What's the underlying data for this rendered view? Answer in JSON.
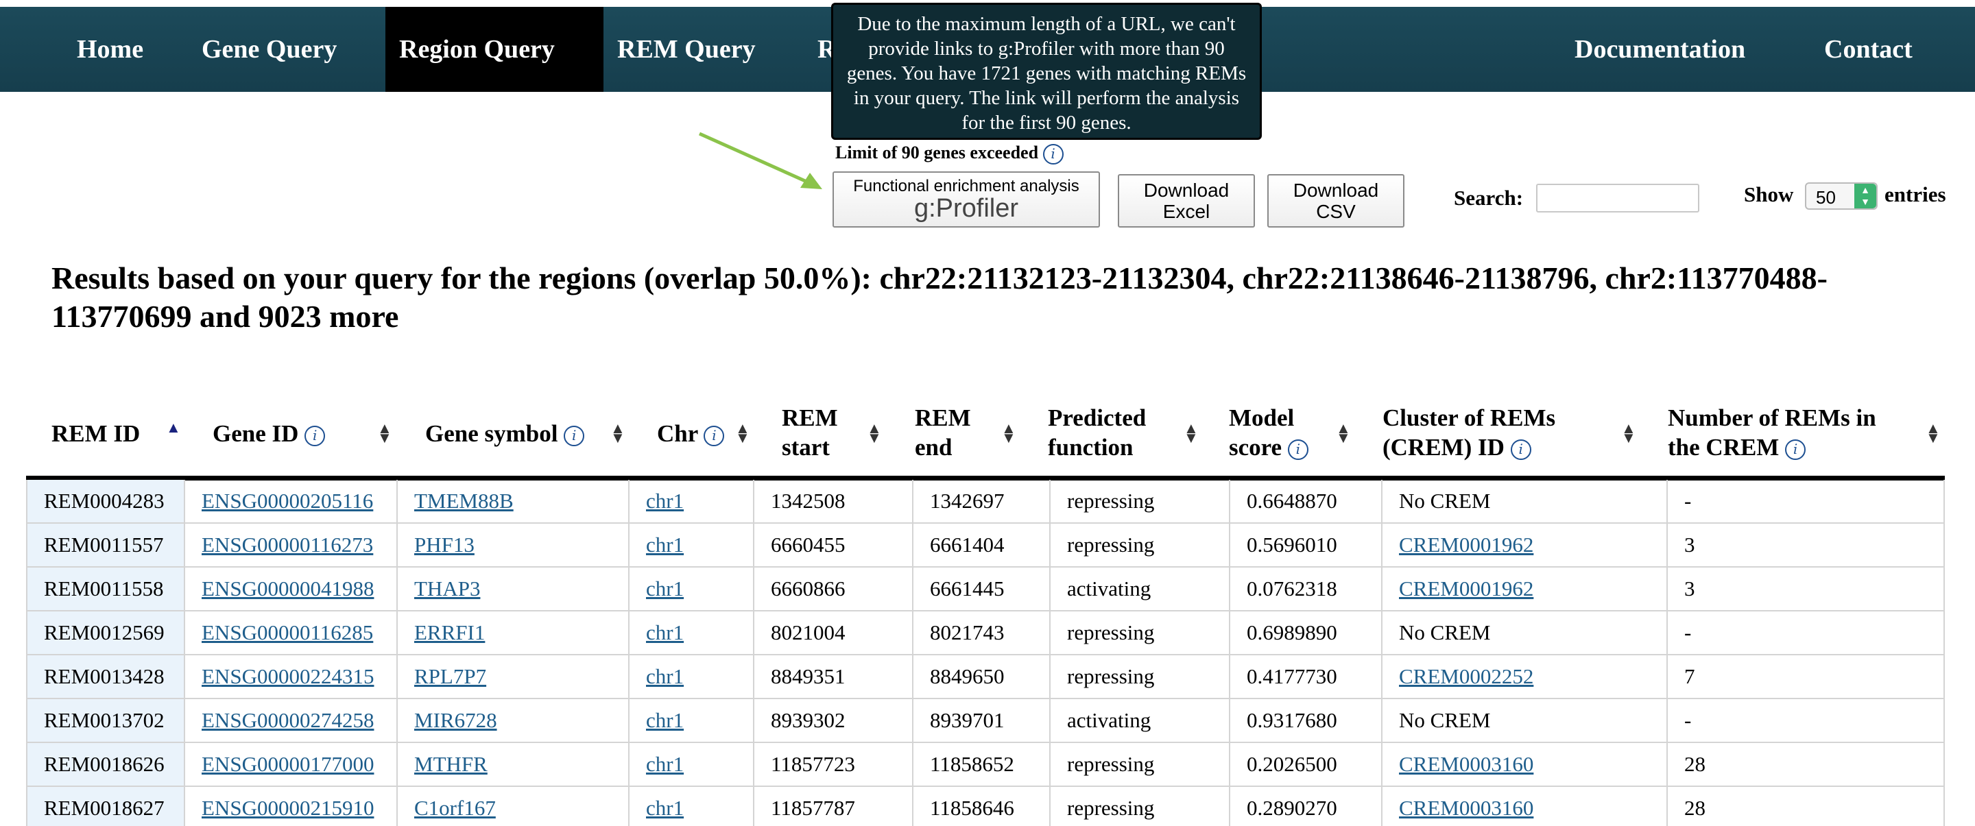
{
  "nav": {
    "items": [
      {
        "label": "Home"
      },
      {
        "label": "Gene Query"
      },
      {
        "label": "Region Query"
      },
      {
        "label": "REM Query"
      },
      {
        "label": "R"
      },
      {
        "label": "Documentation"
      },
      {
        "label": "Contact"
      }
    ]
  },
  "tooltip": {
    "text": "Due to the maximum length of a URL, we can't provide links to g:Profiler with more than 90 genes. You have 1721 genes with matching REMs in your query. The link will perform the analysis for the first 90 genes."
  },
  "limit_notice": "Limit of 90 genes exceeded",
  "buttons": {
    "gprofiler_line1": "Functional enrichment analysis",
    "gprofiler_line2": "g:Profiler",
    "excel_line1": "Download",
    "excel_line2": "Excel",
    "csv_line1": "Download",
    "csv_line2": "CSV"
  },
  "search": {
    "label": "Search:",
    "value": ""
  },
  "show": {
    "label": "Show",
    "value": "50",
    "suffix": "entries"
  },
  "results_title": "Results based on your query for the regions (overlap 50.0%): chr22:21132123-21132304, chr22:21138646-21138796, chr2:113770488-113770699 and 9023 more",
  "table": {
    "headers": {
      "rem_id": "REM ID",
      "gene_id": "Gene ID",
      "gene_symbol": "Gene symbol",
      "chr": "Chr",
      "rem_start_1": "REM",
      "rem_start_2": "start",
      "rem_end_1": "REM",
      "rem_end_2": "end",
      "predicted_1": "Predicted",
      "predicted_2": "function",
      "model_1": "Model",
      "model_2": "score",
      "crem_1": "Cluster of REMs",
      "crem_2": "(CREM) ID",
      "nrem_1": "Number of REMs in",
      "nrem_2": "the CREM"
    },
    "rows": [
      {
        "rem_id": "REM0004283",
        "gene_id": "ENSG00000205116",
        "gene_symbol": "TMEM88B",
        "chr": "chr1",
        "start": "1342508",
        "end": "1342697",
        "function": "repressing",
        "score": "0.6648870",
        "crem": "No CREM",
        "nrem": "-"
      },
      {
        "rem_id": "REM0011557",
        "gene_id": "ENSG00000116273",
        "gene_symbol": "PHF13",
        "chr": "chr1",
        "start": "6660455",
        "end": "6661404",
        "function": "repressing",
        "score": "0.5696010",
        "crem": "CREM0001962",
        "nrem": "3"
      },
      {
        "rem_id": "REM0011558",
        "gene_id": "ENSG00000041988",
        "gene_symbol": "THAP3",
        "chr": "chr1",
        "start": "6660866",
        "end": "6661445",
        "function": "activating",
        "score": "0.0762318",
        "crem": "CREM0001962",
        "nrem": "3"
      },
      {
        "rem_id": "REM0012569",
        "gene_id": "ENSG00000116285",
        "gene_symbol": "ERRFI1",
        "chr": "chr1",
        "start": "8021004",
        "end": "8021743",
        "function": "repressing",
        "score": "0.6989890",
        "crem": "No CREM",
        "nrem": "-"
      },
      {
        "rem_id": "REM0013428",
        "gene_id": "ENSG00000224315",
        "gene_symbol": "RPL7P7",
        "chr": "chr1",
        "start": "8849351",
        "end": "8849650",
        "function": "repressing",
        "score": "0.4177730",
        "crem": "CREM0002252",
        "nrem": "7"
      },
      {
        "rem_id": "REM0013702",
        "gene_id": "ENSG00000274258",
        "gene_symbol": "MIR6728",
        "chr": "chr1",
        "start": "8939302",
        "end": "8939701",
        "function": "activating",
        "score": "0.9317680",
        "crem": "No CREM",
        "nrem": "-"
      },
      {
        "rem_id": "REM0018626",
        "gene_id": "ENSG00000177000",
        "gene_symbol": "MTHFR",
        "chr": "chr1",
        "start": "11857723",
        "end": "11858652",
        "function": "repressing",
        "score": "0.2026500",
        "crem": "CREM0003160",
        "nrem": "28"
      },
      {
        "rem_id": "REM0018627",
        "gene_id": "ENSG00000215910",
        "gene_symbol": "C1orf167",
        "chr": "chr1",
        "start": "11857787",
        "end": "11858646",
        "function": "repressing",
        "score": "0.2890270",
        "crem": "CREM0003160",
        "nrem": "28"
      }
    ]
  },
  "colors": {
    "nav_bg": "#1c4a5a",
    "nav_active": "#000000",
    "link": "#1f5e8c",
    "arrow": "#8bc34a",
    "spinner": "#3cb371"
  }
}
